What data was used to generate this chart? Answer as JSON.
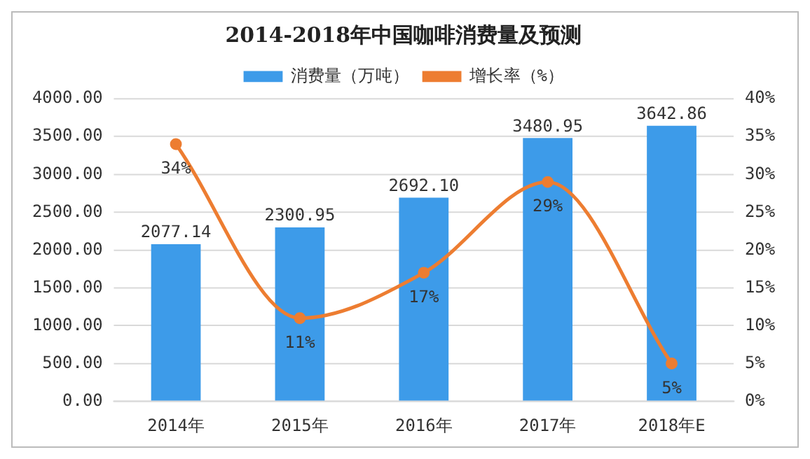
{
  "chart_data": {
    "type": "bar",
    "title": "2014-2018年中国咖啡消费量及预测",
    "categories": [
      "2014年",
      "2015年",
      "2016年",
      "2017年",
      "2018年E"
    ],
    "series": [
      {
        "name": "消费量（万吨）",
        "color": "#3d9be9",
        "values": [
          2077.14,
          2300.95,
          2692.1,
          3480.95,
          3642.86
        ],
        "value_labels": [
          "2077.14",
          "2300.95",
          "2692.10",
          "3480.95",
          "3642.86"
        ]
      },
      {
        "name": "增长率（%）",
        "type": "line",
        "axis": "y2",
        "color": "#ed7d31",
        "values": [
          34,
          11,
          17,
          29,
          5
        ],
        "value_labels": [
          "34%",
          "11%",
          "17%",
          "29%",
          "5%"
        ]
      }
    ],
    "ylim": [
      0,
      4000
    ],
    "yticks": [
      {
        "value": 0,
        "label": "0.00"
      },
      {
        "value": 500,
        "label": "500.00"
      },
      {
        "value": 1000,
        "label": "1000.00"
      },
      {
        "value": 1500,
        "label": "1500.00"
      },
      {
        "value": 2000,
        "label": "2000.00"
      },
      {
        "value": 2500,
        "label": "2500.00"
      },
      {
        "value": 3000,
        "label": "3000.00"
      },
      {
        "value": 3500,
        "label": "3500.00"
      },
      {
        "value": 4000,
        "label": "4000.00"
      }
    ],
    "y2lim": [
      0,
      40
    ],
    "y2ticks": [
      {
        "value": 0,
        "label": "0%"
      },
      {
        "value": 5,
        "label": "5%"
      },
      {
        "value": 10,
        "label": "10%"
      },
      {
        "value": 15,
        "label": "15%"
      },
      {
        "value": 20,
        "label": "20%"
      },
      {
        "value": 25,
        "label": "25%"
      },
      {
        "value": 30,
        "label": "30%"
      },
      {
        "value": 35,
        "label": "35%"
      },
      {
        "value": 40,
        "label": "40%"
      }
    ],
    "grid": "y",
    "legend": "top",
    "marker": "circle",
    "line_style": "solid"
  }
}
